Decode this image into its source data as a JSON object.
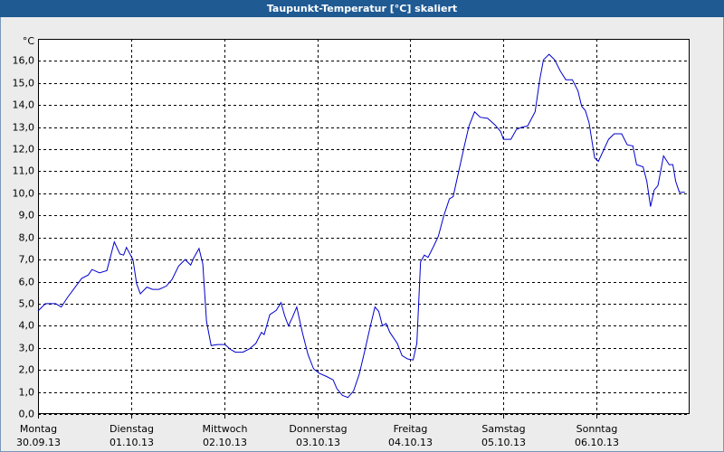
{
  "chart_data": {
    "type": "line",
    "title": "Taupunkt-Temperatur [°C] skaliert",
    "y_unit": "°C",
    "color": "#0000cc",
    "grid": true,
    "xlim": [
      0,
      7
    ],
    "ylim": [
      0,
      17
    ],
    "xticks": [
      {
        "value": 0,
        "label": "Montag"
      },
      {
        "value": 1,
        "label": "Dienstag"
      },
      {
        "value": 2,
        "label": "Mittwoch"
      },
      {
        "value": 3,
        "label": "Donnerstag"
      },
      {
        "value": 4,
        "label": "Freitag"
      },
      {
        "value": 5,
        "label": "Samstag"
      },
      {
        "value": 6,
        "label": "Sonntag"
      }
    ],
    "xtick_dates": [
      "30.09.13",
      "01.10.13",
      "02.10.13",
      "03.10.13",
      "04.10.13",
      "05.10.13",
      "06.10.13"
    ],
    "yticks": [
      {
        "value": 0,
        "label": "0,0"
      },
      {
        "value": 1,
        "label": "1,0"
      },
      {
        "value": 2,
        "label": "2,0"
      },
      {
        "value": 3,
        "label": "3,0"
      },
      {
        "value": 4,
        "label": "4,0"
      },
      {
        "value": 5,
        "label": "5,0"
      },
      {
        "value": 6,
        "label": "6,0"
      },
      {
        "value": 7,
        "label": "7,0"
      },
      {
        "value": 8,
        "label": "8,0"
      },
      {
        "value": 9,
        "label": "9,0"
      },
      {
        "value": 10,
        "label": "10,0"
      },
      {
        "value": 11,
        "label": "11,0"
      },
      {
        "value": 12,
        "label": "12,0"
      },
      {
        "value": 13,
        "label": "13,0"
      },
      {
        "value": 14,
        "label": "14,0"
      },
      {
        "value": 15,
        "label": "15,0"
      },
      {
        "value": 16,
        "label": "16,0"
      }
    ],
    "x": [
      0,
      0.08,
      0.19,
      0.25,
      0.32,
      0.39,
      0.47,
      0.54,
      0.58,
      0.66,
      0.74,
      0.82,
      0.88,
      0.92,
      0.95,
      1.02,
      1.06,
      1.1,
      1.17,
      1.23,
      1.3,
      1.38,
      1.44,
      1.51,
      1.58,
      1.64,
      1.67,
      1.73,
      1.77,
      1.81,
      1.86,
      1.93,
      2.01,
      2.06,
      2.12,
      2.2,
      2.27,
      2.34,
      2.4,
      2.43,
      2.49,
      2.56,
      2.61,
      2.65,
      2.69,
      2.73,
      2.78,
      2.84,
      2.9,
      2.96,
      3.02,
      3.1,
      3.17,
      3.21,
      3.27,
      3.33,
      3.39,
      3.45,
      3.51,
      3.56,
      3.62,
      3.66,
      3.7,
      3.74,
      3.78,
      3.86,
      3.91,
      3.97,
      4.03,
      4.07,
      4.11,
      4.15,
      4.19,
      4.25,
      4.3,
      4.36,
      4.42,
      4.46,
      4.52,
      4.58,
      4.63,
      4.69,
      4.75,
      4.83,
      4.91,
      4.97,
      5.0,
      5.08,
      5.14,
      5.2,
      5.26,
      5.34,
      5.39,
      5.43,
      5.49,
      5.55,
      5.61,
      5.67,
      5.74,
      5.8,
      5.84,
      5.88,
      5.92,
      5.98,
      6.02,
      6.08,
      6.13,
      6.19,
      6.27,
      6.33,
      6.39,
      6.43,
      6.5,
      6.54,
      6.58,
      6.62,
      6.66,
      6.72,
      6.78,
      6.82,
      6.85,
      6.89,
      6.95
    ],
    "values": [
      4.67,
      5.0,
      5.0,
      4.85,
      5.3,
      5.7,
      6.15,
      6.3,
      6.55,
      6.4,
      6.5,
      7.8,
      7.25,
      7.2,
      7.55,
      7.0,
      5.9,
      5.45,
      5.75,
      5.65,
      5.65,
      5.8,
      6.1,
      6.7,
      7.0,
      6.75,
      7.05,
      7.5,
      6.8,
      4.2,
      3.1,
      3.15,
      3.15,
      2.95,
      2.8,
      2.8,
      2.95,
      3.2,
      3.7,
      3.6,
      4.5,
      4.7,
      5.05,
      4.45,
      4.0,
      4.35,
      4.85,
      3.7,
      2.7,
      2.05,
      1.85,
      1.7,
      1.55,
      1.15,
      0.85,
      0.75,
      1.05,
      1.8,
      2.85,
      3.8,
      4.85,
      4.65,
      4.0,
      4.1,
      3.7,
      3.2,
      2.65,
      2.5,
      2.45,
      3.2,
      6.9,
      7.2,
      7.1,
      7.6,
      8.05,
      9.0,
      9.75,
      9.85,
      11.0,
      12.15,
      13.05,
      13.7,
      13.45,
      13.4,
      13.1,
      12.8,
      12.45,
      12.45,
      12.9,
      13.0,
      13.05,
      13.7,
      15.15,
      16.05,
      16.3,
      16.05,
      15.55,
      15.15,
      15.15,
      14.65,
      13.95,
      13.75,
      13.2,
      11.6,
      11.45,
      12.0,
      12.45,
      12.7,
      12.7,
      12.2,
      12.15,
      11.3,
      11.2,
      10.55,
      9.4,
      10.15,
      10.35,
      11.7,
      11.3,
      11.3,
      10.55,
      10.05,
      10.05
    ]
  }
}
